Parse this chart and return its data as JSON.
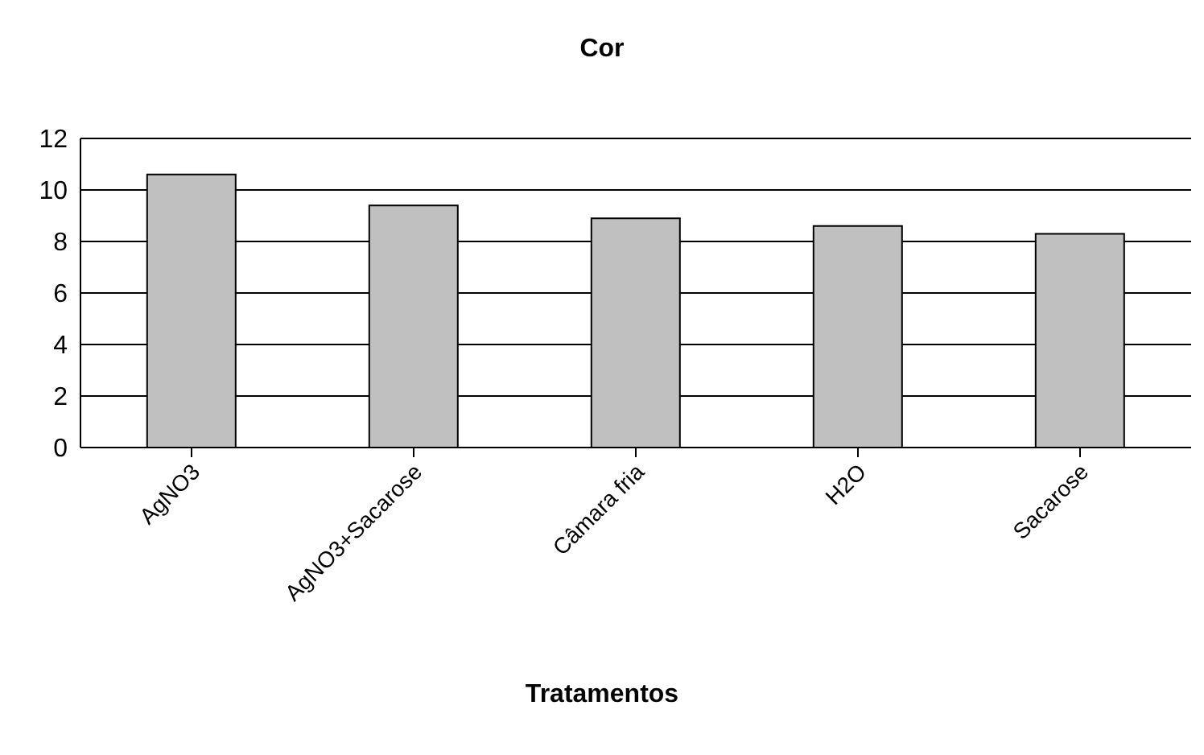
{
  "chart_data": {
    "type": "bar",
    "title": "Cor",
    "xlabel": "Tratamentos",
    "categories": [
      "AgNO3",
      "AgNO3+Sacarose",
      "Câmara fria",
      "H2O",
      "Sacarose"
    ],
    "values": [
      10.6,
      9.4,
      8.9,
      8.6,
      8.3
    ],
    "color": "#c0c0c0",
    "ylim": [
      0,
      12
    ],
    "yticks": [
      0,
      2,
      4,
      6,
      8,
      10,
      12
    ],
    "grid": "y"
  }
}
